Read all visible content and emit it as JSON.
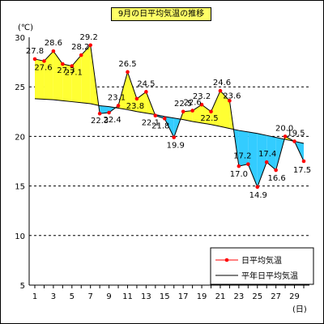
{
  "chart_data": {
    "type": "line",
    "title": "9月の日平均気温の推移",
    "y_unit": "(℃)",
    "x_unit": "(日)",
    "ylim": [
      5,
      30
    ],
    "y_ticks": [
      5,
      10,
      15,
      20,
      25,
      30
    ],
    "x_range": [
      1,
      30
    ],
    "x_tick_labels": [
      1,
      3,
      5,
      7,
      9,
      11,
      13,
      15,
      17,
      19,
      21,
      23,
      25,
      27,
      29
    ],
    "grid": "horizontal dashed",
    "legend_position": "bottom-right",
    "fill_above_normal_color": "#ffff33",
    "fill_below_normal_color": "#33ccff",
    "series": [
      {
        "name": "日平均気温",
        "color": "#ff0000",
        "marker": "dot",
        "x": [
          1,
          2,
          3,
          4,
          5,
          6,
          7,
          8,
          9,
          10,
          11,
          12,
          13,
          14,
          15,
          16,
          17,
          18,
          19,
          20,
          21,
          22,
          23,
          24,
          25,
          26,
          27,
          28,
          29,
          30
        ],
        "values": [
          27.8,
          27.6,
          28.6,
          27.3,
          27.1,
          28.2,
          29.2,
          22.3,
          22.4,
          23.1,
          26.5,
          23.8,
          24.5,
          22.1,
          21.8,
          19.9,
          22.5,
          22.6,
          23.2,
          22.5,
          24.6,
          23.6,
          17.0,
          17.2,
          14.9,
          17.4,
          16.6,
          20.0,
          19.5,
          17.5
        ]
      },
      {
        "name": "平年日平均気温",
        "color": "#000000",
        "marker": "none",
        "x": [
          1,
          2,
          3,
          4,
          5,
          6,
          7,
          8,
          9,
          10,
          11,
          12,
          13,
          14,
          15,
          16,
          17,
          18,
          19,
          20,
          21,
          22,
          23,
          24,
          25,
          26,
          27,
          28,
          29,
          30
        ],
        "values": [
          23.8,
          23.75,
          23.7,
          23.6,
          23.5,
          23.4,
          23.3,
          23.1,
          23.0,
          22.85,
          22.7,
          22.5,
          22.35,
          22.2,
          22.0,
          21.85,
          21.7,
          21.5,
          21.35,
          21.2,
          21.0,
          20.8,
          20.6,
          20.45,
          20.3,
          20.1,
          19.9,
          19.7,
          19.5,
          19.3
        ]
      }
    ]
  }
}
